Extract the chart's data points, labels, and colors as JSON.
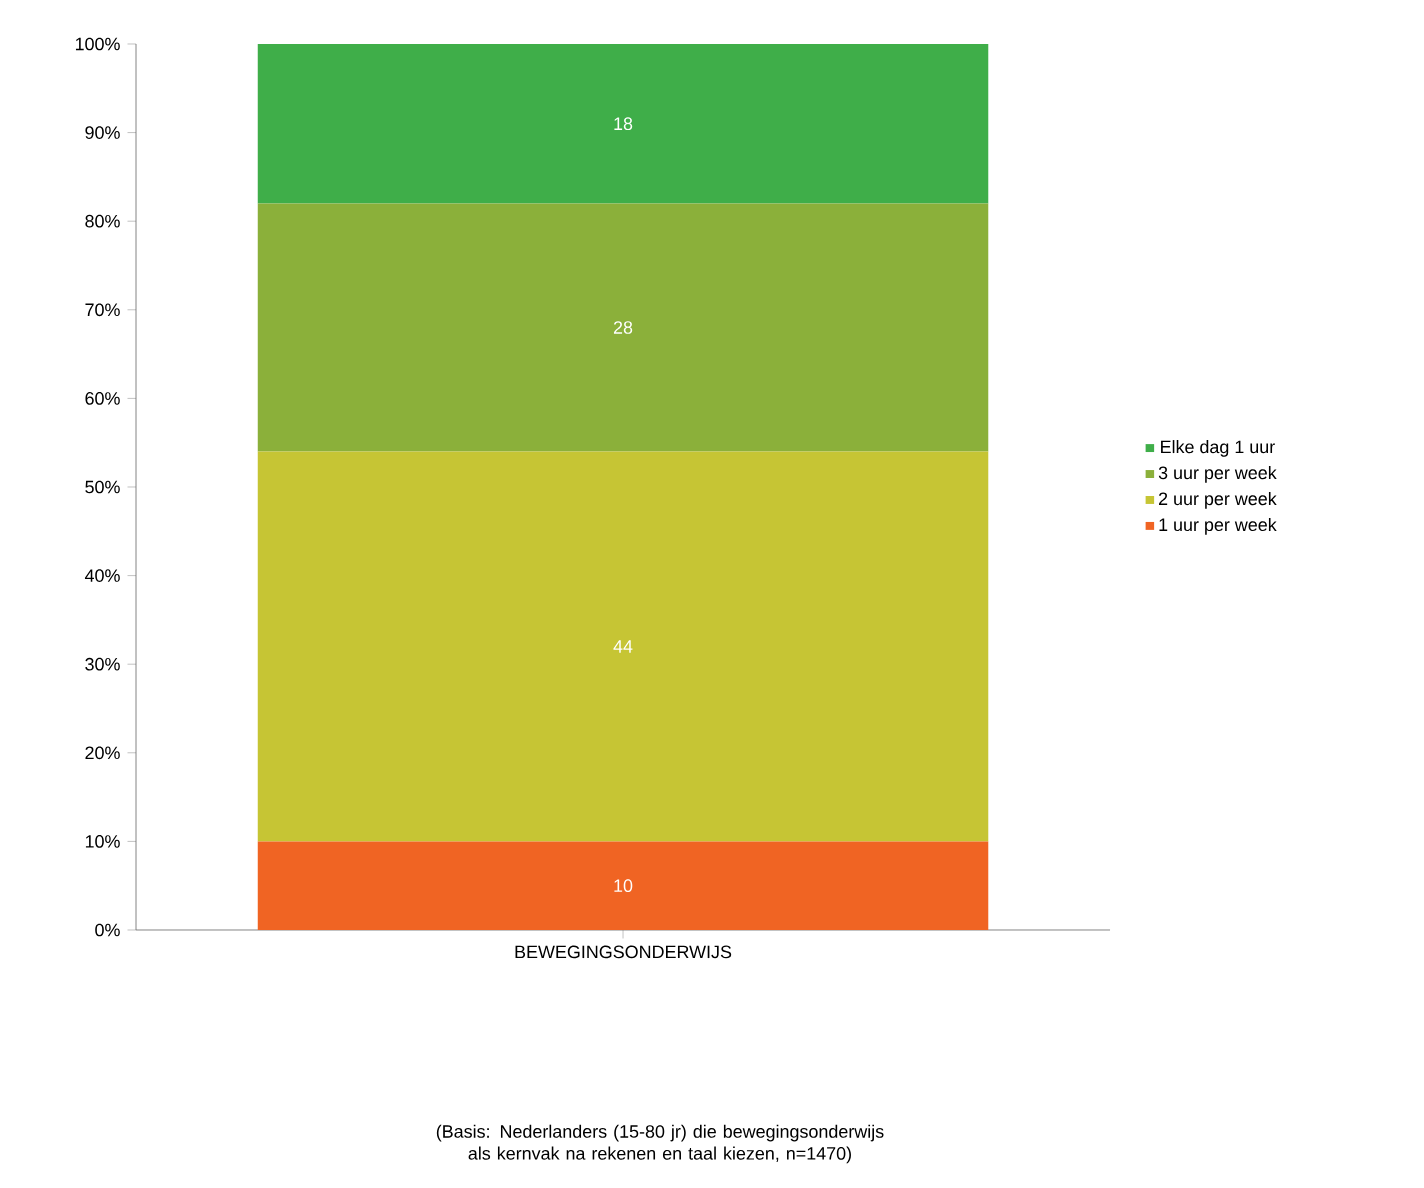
{
  "chart_data": {
    "type": "bar",
    "stacked": true,
    "categories": [
      "BEWEGINGSONDERWIJS"
    ],
    "series": [
      {
        "name": "1 uur per week",
        "color": "#f06423",
        "values": [
          10
        ]
      },
      {
        "name": "2 uur per week",
        "color": "#c6c534",
        "values": [
          44
        ]
      },
      {
        "name": "3 uur per week",
        "color": "#8bb03a",
        "values": [
          28
        ]
      },
      {
        "name": "Elke dag 1 uur",
        "color": "#3fae49",
        "values": [
          18
        ]
      }
    ],
    "ylim": [
      0,
      100
    ],
    "yticks": [
      {
        "value": 0,
        "label": "0%"
      },
      {
        "value": 10,
        "label": "10%"
      },
      {
        "value": 20,
        "label": "20%"
      },
      {
        "value": 30,
        "label": "30%"
      },
      {
        "value": 40,
        "label": "40%"
      },
      {
        "value": 50,
        "label": "50%"
      },
      {
        "value": 60,
        "label": "60%"
      },
      {
        "value": 70,
        "label": "70%"
      },
      {
        "value": 80,
        "label": "80%"
      },
      {
        "value": 90,
        "label": "90%"
      },
      {
        "value": 100,
        "label": "100%"
      }
    ],
    "data_labels": true,
    "legend": "right",
    "annotations": [
      "(Basis: Nederlanders (15-80 jr) die bewegingsonderwijs als kernvak na rekenen en taal kiezen, n=1470)"
    ]
  }
}
